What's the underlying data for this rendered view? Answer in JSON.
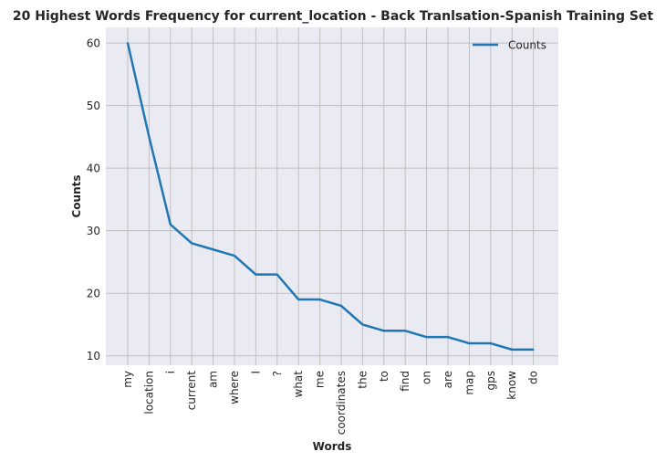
{
  "chart_data": {
    "type": "line",
    "title": "20 Highest Words Frequency for current_location - Back Tranlsation-Spanish Training Set",
    "xlabel": "Words",
    "ylabel": "Counts",
    "categories": [
      "my",
      "location",
      "i",
      "current",
      "am",
      "where",
      "I",
      "?",
      "what",
      "me",
      "coordinates",
      "the",
      "to",
      "find",
      "on",
      "are",
      "map",
      "gps",
      "know",
      "do"
    ],
    "series": [
      {
        "name": "Counts",
        "values": [
          60,
          45,
          31,
          28,
          27,
          26,
          23,
          23,
          19,
          19,
          18,
          15,
          14,
          14,
          13,
          13,
          12,
          12,
          11,
          11
        ]
      }
    ],
    "yticks": [
      10,
      20,
      30,
      40,
      50,
      60
    ],
    "ylim": [
      8.5,
      62.5
    ],
    "grid": true,
    "legend_position": "top-right",
    "colors": {
      "background": "#eaeaf2",
      "grid": "#c0c0c0",
      "line": "#1f77b4",
      "text": "#262626"
    }
  }
}
